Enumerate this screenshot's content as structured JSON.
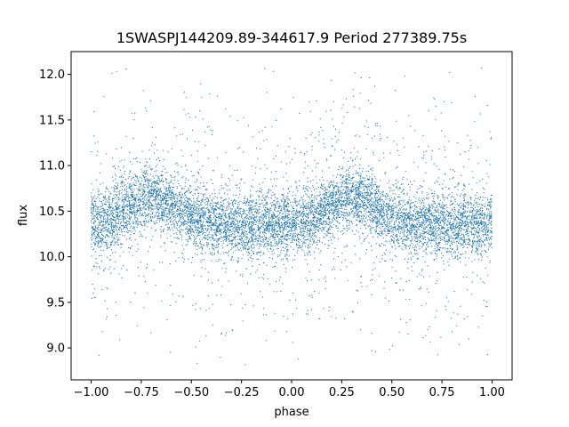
{
  "chart_data": {
    "type": "scatter",
    "title": "1SWASPJ144209.89-344617.9 Period 277389.75s",
    "xlabel": "phase",
    "ylabel": "flux",
    "xlim": [
      -1.1,
      1.1
    ],
    "ylim": [
      8.65,
      12.25
    ],
    "xticks": [
      -1.0,
      -0.75,
      -0.5,
      -0.25,
      0.0,
      0.25,
      0.5,
      0.75,
      1.0
    ],
    "xtick_labels": [
      "−1.00",
      "−0.75",
      "−0.50",
      "−0.25",
      "0.00",
      "0.25",
      "0.50",
      "0.75",
      "1.00"
    ],
    "yticks": [
      9.0,
      9.5,
      10.0,
      10.5,
      11.0,
      11.5,
      12.0
    ],
    "ytick_labels": [
      "9.0",
      "9.5",
      "10.0",
      "10.5",
      "11.0",
      "11.5",
      "12.0"
    ],
    "grid": false,
    "series": [
      {
        "phase_range": [
          -1.0,
          1.0
        ],
        "color": "#1f77b4",
        "baseline_flux": 10.35,
        "modulation_peaks": [
          -0.7,
          0.3
        ],
        "modulation_amplitude": 0.15,
        "scatter_sigma": 0.17,
        "flux_extent": [
          8.8,
          12.1
        ]
      }
    ]
  }
}
